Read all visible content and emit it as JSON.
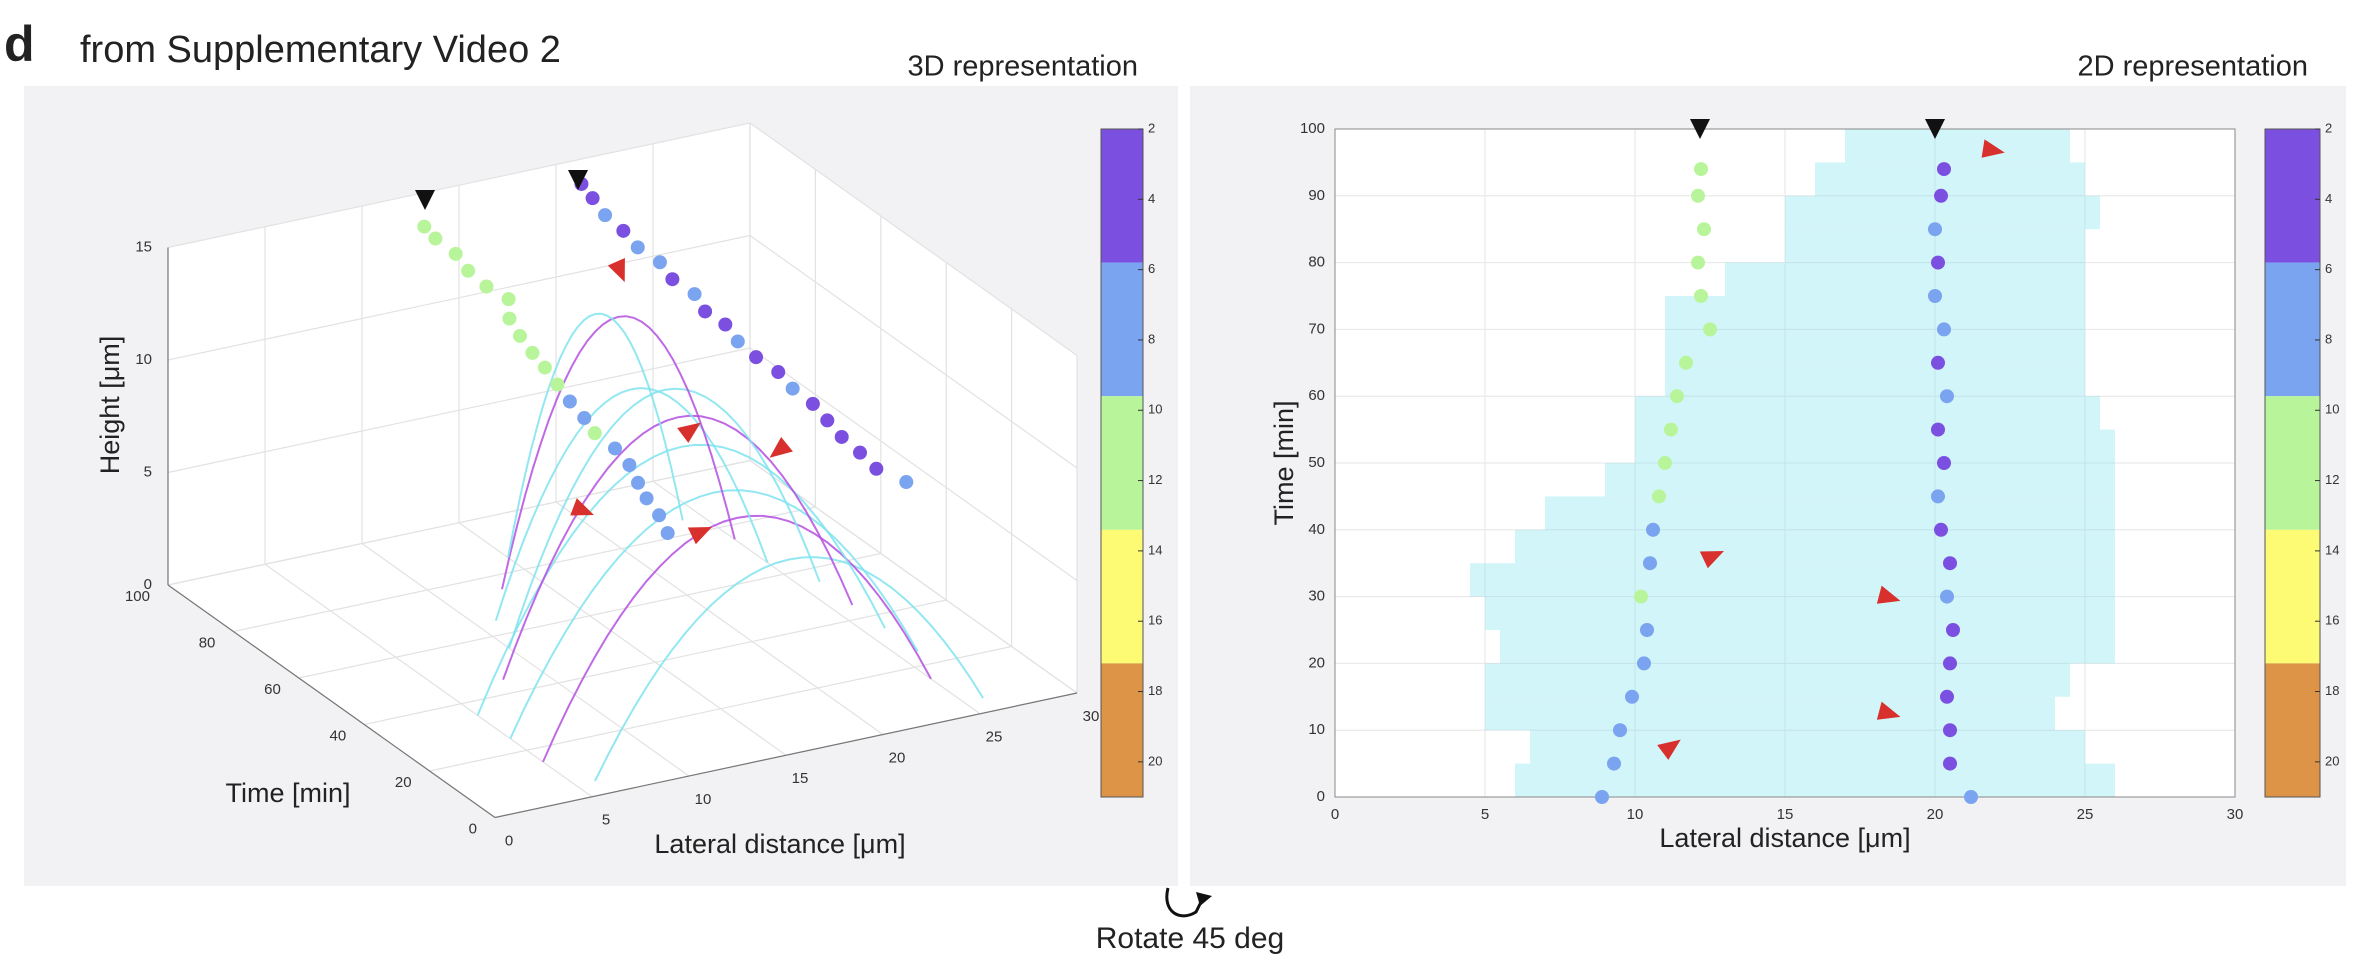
{
  "header": {
    "letter": "d",
    "title": "from Supplementary Video 2"
  },
  "chart_data": [
    {
      "type": "scatter3d",
      "title": "3D representation",
      "xlabel": "Lateral distance [μm]",
      "ylabel": "Time [min]",
      "zlabel": "Height [μm]",
      "xlim": [
        0,
        30
      ],
      "xticks": [
        0,
        5,
        10,
        15,
        20,
        25,
        30
      ],
      "ylim": [
        0,
        100
      ],
      "yticks": [
        0,
        20,
        40,
        60,
        80,
        100
      ],
      "zlim": [
        0,
        15
      ],
      "zticks": [
        0,
        5,
        10,
        15
      ],
      "colorbar": {
        "lim": [
          2,
          21
        ],
        "ticks": [
          2,
          4,
          6,
          8,
          10,
          12,
          14,
          16,
          18,
          20
        ],
        "colors": [
          "#7b4fe0",
          "#7aa3f0",
          "#b8f59a",
          "#fdfb74",
          "#de9446"
        ]
      },
      "series": [
        {
          "x": [
            8.9,
            9.3,
            9.5,
            9.9,
            10.3,
            10.4,
            10.2,
            10.5,
            10.6,
            10.8,
            11.0,
            11.2,
            11.4,
            11.7,
            12.5,
            12.2,
            12.1,
            12.3,
            12.1,
            12.2
          ],
          "y": [
            0,
            5,
            10,
            15,
            20,
            25,
            30,
            35,
            40,
            45,
            50,
            55,
            60,
            65,
            70,
            75,
            80,
            85,
            90,
            94
          ],
          "z": [
            11,
            11.2,
            11.4,
            11.5,
            11.7,
            11.9,
            12.1,
            12.2,
            12.4,
            12.6,
            12.8,
            12.9,
            13.1,
            13.3,
            13.5,
            13.6,
            13.8,
            14.0,
            14.2,
            14.3
          ],
          "c": [
            7,
            8,
            8,
            7,
            7,
            9,
            10,
            8,
            8,
            11,
            11,
            11,
            11,
            11,
            11,
            11,
            11,
            11,
            11,
            11
          ]
        },
        {
          "x": [
            21.2,
            20.5,
            20.5,
            20.4,
            20.5,
            20.6,
            20.4,
            20.5,
            20.2,
            20.1,
            20.3,
            20.1,
            20.4,
            20.1,
            20.3,
            20.0,
            20.1,
            20.0,
            20.2,
            20.3
          ],
          "y": [
            0,
            5,
            10,
            15,
            20,
            25,
            30,
            35,
            40,
            45,
            50,
            55,
            60,
            65,
            70,
            75,
            80,
            85,
            90,
            94
          ],
          "z": [
            11,
            11.2,
            11.4,
            11.6,
            11.8,
            12.0,
            12.2,
            12.4,
            12.6,
            12.8,
            13.0,
            13.1,
            13.3,
            13.5,
            13.7,
            13.9,
            14.1,
            14.3,
            14.5,
            14.7
          ],
          "c": [
            7,
            4,
            4,
            5,
            4,
            4,
            7,
            4,
            4,
            7,
            4,
            4,
            7,
            4,
            7,
            7,
            4,
            7,
            4,
            4
          ]
        }
      ],
      "arcs": {
        "y": [
          5,
          15,
          25,
          35,
          45,
          55,
          65,
          75,
          85
        ],
        "x0": [
          6,
          5,
          5,
          5,
          8,
          10,
          11,
          13,
          15
        ],
        "x1": [
          26,
          25,
          26,
          26,
          26,
          26,
          25,
          25,
          24
        ],
        "zmax": [
          8,
          9,
          9,
          10,
          10,
          10,
          9,
          11,
          10
        ]
      }
    },
    {
      "type": "scatter",
      "title": "2D representation",
      "xlabel": "Lateral distance [μm]",
      "ylabel": "Time [min]",
      "xlim": [
        0,
        30
      ],
      "xticks": [
        0,
        5,
        10,
        15,
        20,
        25,
        30
      ],
      "ylim": [
        0,
        100
      ],
      "yticks": [
        0,
        10,
        20,
        30,
        40,
        50,
        60,
        70,
        80,
        90,
        100
      ],
      "grid": true,
      "colorbar": {
        "lim": [
          2,
          21
        ],
        "ticks": [
          2,
          4,
          6,
          8,
          10,
          12,
          14,
          16,
          18,
          20
        ],
        "colors": [
          "#7b4fe0",
          "#7aa3f0",
          "#b8f59a",
          "#fdfb74",
          "#de9446"
        ]
      },
      "series": [
        {
          "x": [
            8.9,
            9.3,
            9.5,
            9.9,
            10.3,
            10.4,
            10.2,
            10.5,
            10.6,
            10.8,
            11.0,
            11.2,
            11.4,
            11.7,
            12.5,
            12.2,
            12.1,
            12.3,
            12.1,
            12.2
          ],
          "y": [
            0,
            5,
            10,
            15,
            20,
            25,
            30,
            35,
            40,
            45,
            50,
            55,
            60,
            65,
            70,
            75,
            80,
            85,
            90,
            94
          ],
          "c": [
            7,
            8,
            8,
            7,
            7,
            9,
            10,
            8,
            8,
            11,
            11,
            11,
            11,
            11,
            11,
            11,
            11,
            11,
            11,
            11
          ]
        },
        {
          "x": [
            21.2,
            20.5,
            20.5,
            20.4,
            20.5,
            20.6,
            20.4,
            20.5,
            20.2,
            20.1,
            20.3,
            20.1,
            20.4,
            20.1,
            20.3,
            20.0,
            20.1,
            20.0,
            20.2,
            20.3
          ],
          "y": [
            0,
            5,
            10,
            15,
            20,
            25,
            30,
            35,
            40,
            45,
            50,
            55,
            60,
            65,
            70,
            75,
            80,
            85,
            90,
            94
          ],
          "c": [
            7,
            4,
            4,
            5,
            4,
            4,
            7,
            4,
            4,
            7,
            4,
            4,
            7,
            4,
            7,
            7,
            4,
            7,
            4,
            4
          ]
        }
      ],
      "extents": {
        "y": [
          0,
          5,
          10,
          15,
          20,
          25,
          30,
          35,
          40,
          45,
          50,
          55,
          60,
          65,
          70,
          75,
          80,
          85,
          90,
          95
        ],
        "x0": [
          6,
          6.5,
          5,
          5,
          5.5,
          5,
          4.5,
          6,
          7,
          9,
          10,
          10,
          11,
          11,
          11,
          13,
          15,
          15,
          16,
          17
        ],
        "x1": [
          26,
          25,
          24,
          24.5,
          26,
          26,
          26,
          26,
          26,
          26,
          26,
          25.5,
          25,
          25,
          25,
          25,
          25,
          25.5,
          25,
          24.5
        ]
      }
    }
  ],
  "footer": {
    "caption": "Rotate 45 deg"
  }
}
